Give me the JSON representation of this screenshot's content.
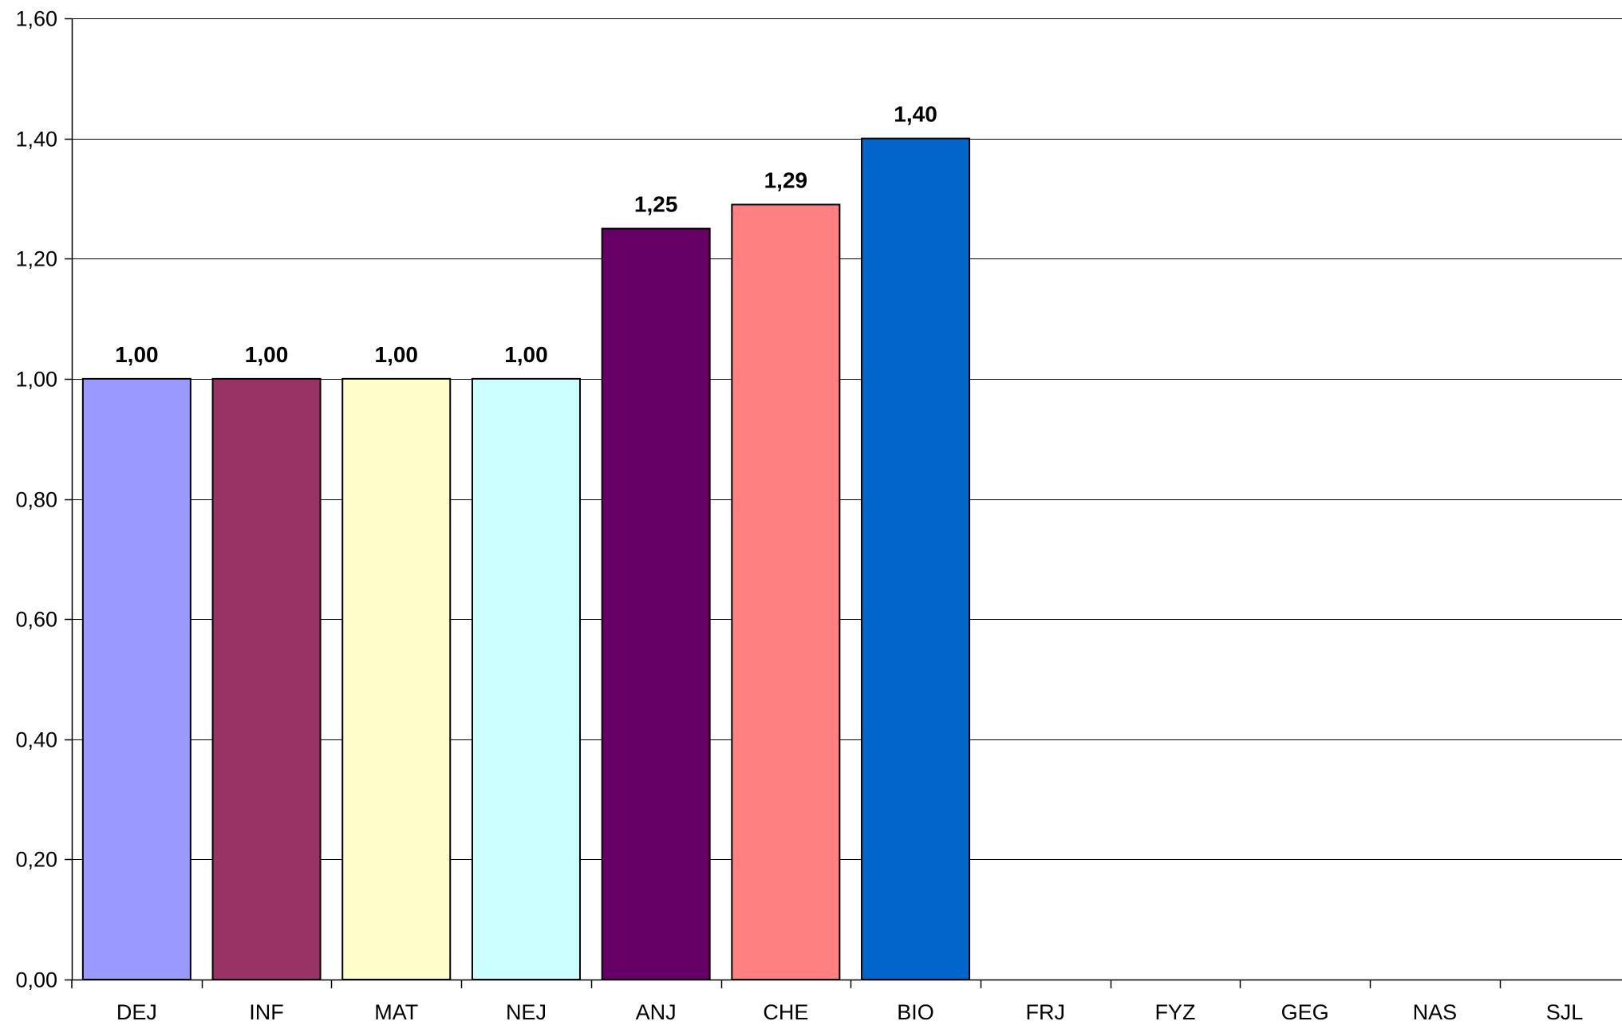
{
  "chart_data": {
    "type": "bar",
    "categories": [
      "DEJ",
      "INF",
      "MAT",
      "NEJ",
      "ANJ",
      "CHE",
      "BIO",
      "FRJ",
      "FYZ",
      "GEG",
      "NAS",
      "SJL"
    ],
    "values": [
      1.0,
      1.0,
      1.0,
      1.0,
      1.25,
      1.29,
      1.4,
      null,
      null,
      null,
      null,
      null
    ],
    "data_labels": [
      "1,00",
      "1,00",
      "1,00",
      "1,00",
      "1,25",
      "1,29",
      "1,40",
      "",
      "",
      "",
      "",
      ""
    ],
    "colors": [
      "#9999FF",
      "#993366",
      "#FFFFCC",
      "#CCFFFF",
      "#660066",
      "#FF8080",
      "#0066CC",
      "",
      "",
      "",
      "",
      ""
    ],
    "yticks": [
      "0,00",
      "0,20",
      "0,40",
      "0,60",
      "0,80",
      "1,00",
      "1,20",
      "1,40",
      "1,60"
    ],
    "ylim": [
      0,
      1.6
    ],
    "ystep": 0.2,
    "grid": true,
    "legend": "none",
    "title": "",
    "xlabel": "",
    "ylabel": ""
  }
}
